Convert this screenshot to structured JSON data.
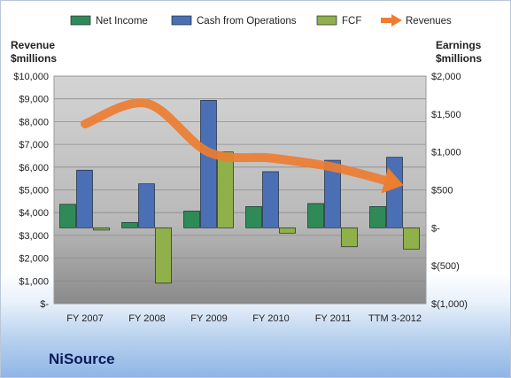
{
  "chart_data": {
    "type": "bar",
    "company": "NiSource",
    "categories": [
      "FY 2007",
      "FY 2008",
      "FY 2009",
      "FY 2010",
      "FY 2011",
      "TTM 3-2012"
    ],
    "left_axis": {
      "title_line1": "Revenue",
      "title_line2": "$millions",
      "ylim": [
        0,
        10000
      ],
      "ticks": [
        0,
        1000,
        2000,
        3000,
        4000,
        5000,
        6000,
        7000,
        8000,
        9000,
        10000
      ],
      "tick_labels": [
        "$-",
        "$1,000",
        "$2,000",
        "$3,000",
        "$4,000",
        "$5,000",
        "$6,000",
        "$7,000",
        "$8,000",
        "$9,000",
        "$10,000"
      ]
    },
    "right_axis": {
      "title_line1": "Earnings",
      "title_line2": "$millions",
      "ylim": [
        -1000,
        2000
      ],
      "ticks": [
        -1000,
        -500,
        0,
        500,
        1000,
        1500,
        2000
      ],
      "tick_labels": [
        "$(1,000)",
        "$(500)",
        "$-",
        "$500",
        "$1,000",
        "$1,500",
        "$2,000"
      ]
    },
    "series": [
      {
        "name": "Net Income",
        "axis": "right",
        "kind": "bar",
        "color": "#2e8b57",
        "values": [
          310,
          70,
          220,
          280,
          320,
          280
        ]
      },
      {
        "name": "Cash from Operations",
        "axis": "right",
        "kind": "bar",
        "color": "#4a6fb5",
        "values": [
          760,
          580,
          1680,
          740,
          890,
          930
        ]
      },
      {
        "name": "FCF",
        "axis": "right",
        "kind": "bar",
        "color": "#8fb04a",
        "values": [
          -30,
          -730,
          1000,
          -70,
          -250,
          -280
        ]
      },
      {
        "name": "Revenues",
        "axis": "left",
        "kind": "line",
        "color": "#ed7d31",
        "values": [
          7900,
          8800,
          6650,
          6400,
          6000,
          5300
        ]
      }
    ],
    "legend_position": "top",
    "grid": true
  }
}
